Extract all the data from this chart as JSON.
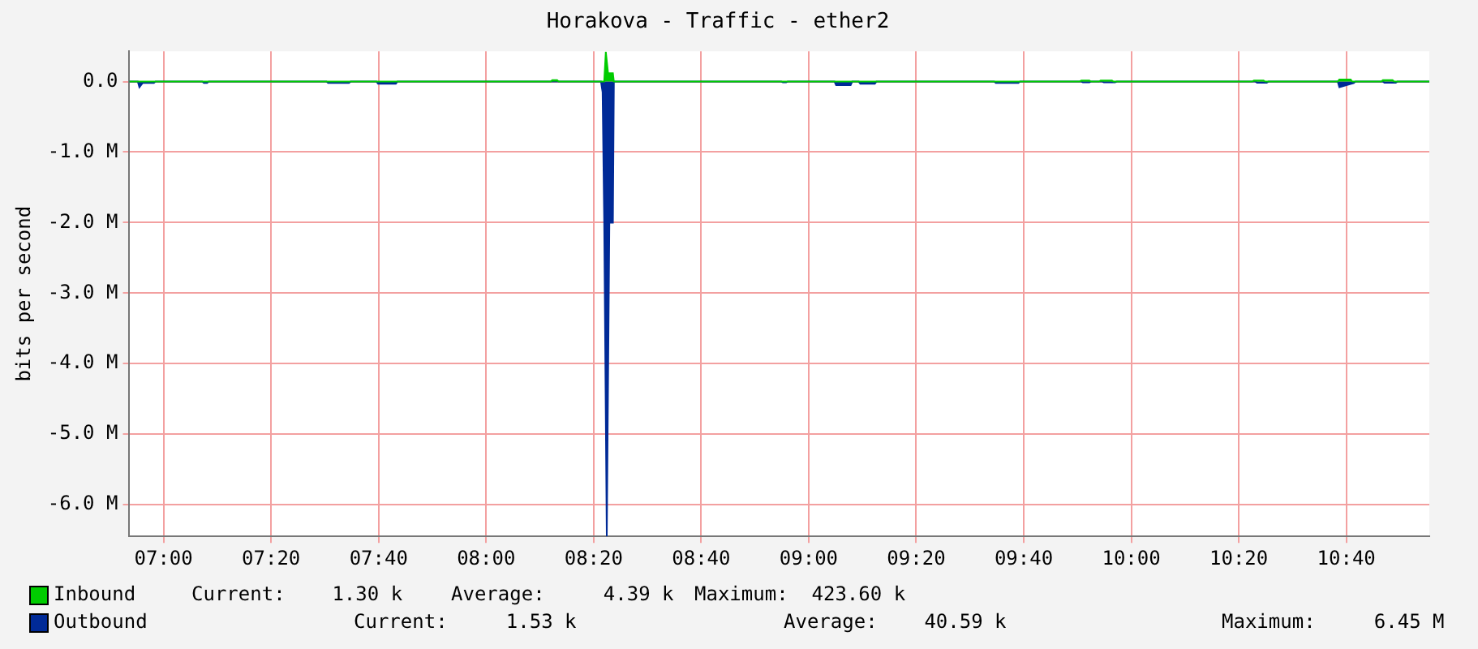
{
  "chart_data": {
    "type": "area",
    "title": "Horakova - Traffic - ether2",
    "ylabel": "bits per second",
    "legend": "bottom",
    "grid": true,
    "xlim": [
      6.894,
      10.924
    ],
    "xticks": [
      {
        "value": 7,
        "label": "07:00"
      },
      {
        "value": 7.3333,
        "label": "07:20"
      },
      {
        "value": 7.6667,
        "label": "07:40"
      },
      {
        "value": 8,
        "label": "08:00"
      },
      {
        "value": 8.3333,
        "label": "08:20"
      },
      {
        "value": 8.6667,
        "label": "08:40"
      },
      {
        "value": 9,
        "label": "09:00"
      },
      {
        "value": 9.3333,
        "label": "09:20"
      },
      {
        "value": 9.6667,
        "label": "09:40"
      },
      {
        "value": 10,
        "label": "10:00"
      },
      {
        "value": 10.3333,
        "label": "10:20"
      },
      {
        "value": 10.6667,
        "label": "10:40"
      }
    ],
    "ylim": [
      -6450000,
      430000
    ],
    "yticks": [
      {
        "value": 0,
        "label": "0.0"
      },
      {
        "value": -1000000,
        "label": "-1.0 M"
      },
      {
        "value": -2000000,
        "label": "-2.0 M"
      },
      {
        "value": -3000000,
        "label": "-3.0 M"
      },
      {
        "value": -4000000,
        "label": "-4.0 M"
      },
      {
        "value": -5000000,
        "label": "-5.0 M"
      },
      {
        "value": -6000000,
        "label": "-6.0 M"
      }
    ],
    "annotations": [
      "Current:    1.30 k",
      "Average:     4.39 k",
      "Maximum:  423.60 k",
      "Current:     1.53 k",
      "Average:    40.59 k",
      "Maximum:     6.45 M"
    ],
    "series": [
      {
        "name": "Inbound",
        "color": "#00cc00",
        "x": [
          6.894,
          8.2,
          8.205,
          8.22,
          8.225,
          8.366,
          8.371,
          8.378,
          8.393,
          8.396,
          9.84,
          9.845,
          9.87,
          9.875,
          9.9,
          9.905,
          9.94,
          9.945,
          10.375,
          10.38,
          10.41,
          10.415,
          10.64,
          10.645,
          10.68,
          10.685,
          10.775,
          10.78,
          10.81,
          10.815,
          10.924
        ],
        "values": [
          0,
          0,
          20000,
          20000,
          0,
          0,
          423600,
          120000,
          120000,
          0,
          0,
          15000,
          15000,
          0,
          0,
          15000,
          15000,
          0,
          0,
          15000,
          15000,
          0,
          0,
          30000,
          30000,
          0,
          0,
          20000,
          20000,
          0,
          0
        ]
      },
      {
        "name": "Outbound",
        "color": "#002a97",
        "x": [
          6.894,
          6.92,
          6.925,
          6.935,
          6.945,
          6.97,
          6.975,
          7.12,
          7.125,
          7.135,
          7.14,
          7.505,
          7.51,
          7.575,
          7.58,
          7.66,
          7.665,
          7.72,
          7.725,
          8.356,
          8.361,
          8.366,
          8.374,
          8.382,
          8.393,
          8.396,
          8.915,
          8.92,
          8.93,
          8.935,
          9.08,
          9.085,
          9.13,
          9.135,
          9.155,
          9.16,
          9.205,
          9.21,
          9.575,
          9.58,
          9.65,
          9.655,
          9.845,
          9.85,
          9.87,
          9.875,
          9.91,
          9.915,
          9.95,
          9.955,
          10.385,
          10.39,
          10.42,
          10.425,
          10.64,
          10.645,
          10.69,
          10.695,
          10.78,
          10.785,
          10.82,
          10.825,
          10.924
        ],
        "values": [
          0,
          0,
          -80000,
          -20000,
          -20000,
          -20000,
          0,
          0,
          -20000,
          -20000,
          0,
          0,
          -20000,
          -20000,
          0,
          0,
          -30000,
          -30000,
          0,
          0,
          -150000,
          -2000000,
          -6450000,
          -2000000,
          -2000000,
          0,
          0,
          -10000,
          -10000,
          0,
          0,
          -50000,
          -50000,
          0,
          0,
          -30000,
          -30000,
          0,
          0,
          -20000,
          -20000,
          0,
          0,
          -10000,
          -10000,
          0,
          0,
          -10000,
          -10000,
          0,
          0,
          -15000,
          -15000,
          0,
          0,
          -80000,
          -20000,
          0,
          0,
          -15000,
          -15000,
          0,
          0
        ]
      }
    ]
  }
}
